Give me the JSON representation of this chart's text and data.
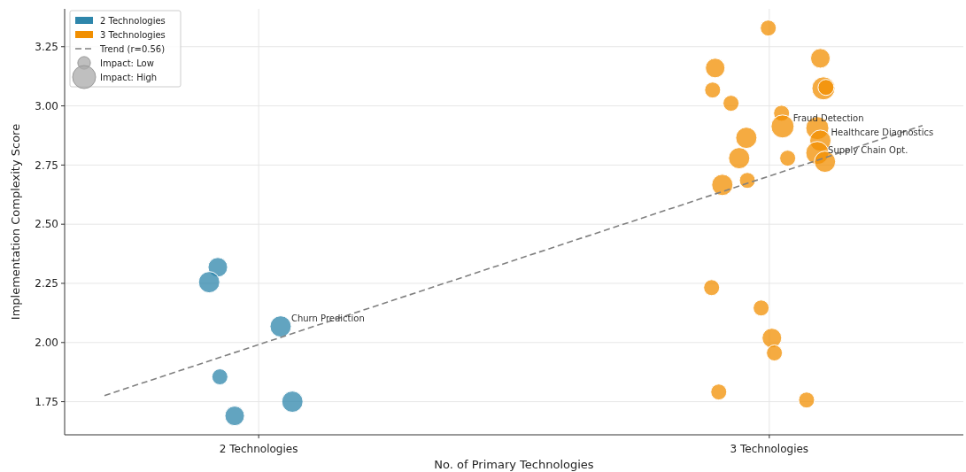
{
  "chart_data": {
    "type": "bubble",
    "xlabel": "No. of Primary Technologies",
    "ylabel": "Implementation Complexity Score",
    "xlim": [
      1.62,
      3.38
    ],
    "xticks": [
      {
        "value": 2,
        "label": "2 Technologies"
      },
      {
        "value": 3,
        "label": "3 Technologies"
      }
    ],
    "ylim": [
      1.61,
      3.41
    ],
    "yticks": [
      1.75,
      {
        "value": 2,
        "label": "2.00"
      },
      2.25,
      {
        "value": 2.5,
        "label": "2.50"
      },
      2.75,
      {
        "value": 3,
        "label": "3.00"
      },
      3.25
    ],
    "grid": true,
    "legend": "top left",
    "marker": "circle",
    "size_legend": [
      {
        "value": 0.3,
        "label": "Impact: Low"
      },
      {
        "value": 1,
        "label": "Impact: High"
      }
    ],
    "series": [
      {
        "name": "2 Technologies",
        "color": "#2e86ab",
        "type": "bubble",
        "x": [
          1.92,
          1.903,
          2.043,
          1.924,
          1.953,
          2.066
        ],
        "values": [
          2.318,
          2.255,
          2.068,
          1.855,
          1.69,
          1.75
        ],
        "sizes": [
          0.72,
          0.85,
          0.85,
          0.48,
          0.72,
          0.85
        ]
      },
      {
        "name": "3 Technologies",
        "color": "#f18f01",
        "type": "bubble",
        "x": [
          2.998,
          2.894,
          2.889,
          2.925,
          3.1,
          3.106,
          3.111,
          3.024,
          3.026,
          2.955,
          2.941,
          3.036,
          3.094,
          3.1,
          3.094,
          3.109,
          2.908,
          2.957,
          2.887,
          2.984,
          3.005,
          3.01,
          2.901,
          3.073
        ],
        "values": [
          3.329,
          3.16,
          3.067,
          3.011,
          3.201,
          3.074,
          3.078,
          2.969,
          2.913,
          2.865,
          2.779,
          2.779,
          2.906,
          2.853,
          2.801,
          2.764,
          2.666,
          2.685,
          2.232,
          2.146,
          2.019,
          1.956,
          1.791,
          1.757
        ],
        "sizes": [
          0.48,
          0.72,
          0.48,
          0.48,
          0.72,
          1,
          0.48,
          0.48,
          1,
          0.85,
          0.85,
          0.48,
          1,
          0.85,
          1,
          0.85,
          0.85,
          0.48,
          0.48,
          0.48,
          0.72,
          0.48,
          0.48,
          0.48
        ]
      },
      {
        "name": "Trend (r=0.56)",
        "color": "#808080",
        "type": "line",
        "line_style": "dashed",
        "marker": "none",
        "x": [
          1.698,
          3.3
        ],
        "values": [
          1.776,
          2.917
        ]
      }
    ],
    "annotations": [
      {
        "text": "Churn Prediction",
        "x": 2.043,
        "y": 2.068
      },
      {
        "text": "Fraud Detection",
        "x": 3.026,
        "y": 2.913
      },
      {
        "text": "Healthcare Diagnostics",
        "x": 3.1,
        "y": 2.853
      },
      {
        "text": "Supply Chain Opt.",
        "x": 3.094,
        "y": 2.801
      }
    ]
  }
}
